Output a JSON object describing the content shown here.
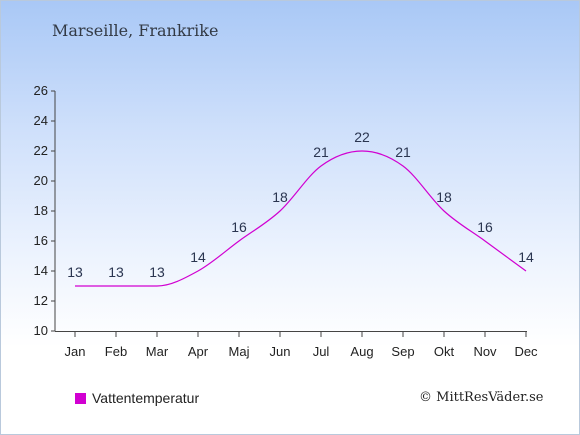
{
  "header": {
    "location": "Marseille, Frankrike"
  },
  "legend": {
    "label": "Vattentemperatur",
    "color": "#d100d1"
  },
  "footer": {
    "copyright": "© MittResVäder.se"
  },
  "chart_data": {
    "type": "line",
    "categories": [
      "Jan",
      "Feb",
      "Mar",
      "Apr",
      "Maj",
      "Jun",
      "Jul",
      "Aug",
      "Sep",
      "Okt",
      "Nov",
      "Dec"
    ],
    "series": [
      {
        "name": "Vattentemperatur",
        "values": [
          13,
          13,
          13,
          14,
          16,
          18,
          21,
          22,
          21,
          18,
          16,
          14
        ],
        "color": "#d100d1"
      }
    ],
    "data_labels": [
      "13",
      "13",
      "13",
      "14",
      "16",
      "18",
      "21",
      "22",
      "21",
      "18",
      "16",
      "14"
    ],
    "ylim": [
      10,
      26
    ],
    "yticks": [
      10,
      12,
      14,
      16,
      18,
      20,
      22,
      24,
      26
    ],
    "grid": false,
    "legend_position": "bottom-left"
  }
}
